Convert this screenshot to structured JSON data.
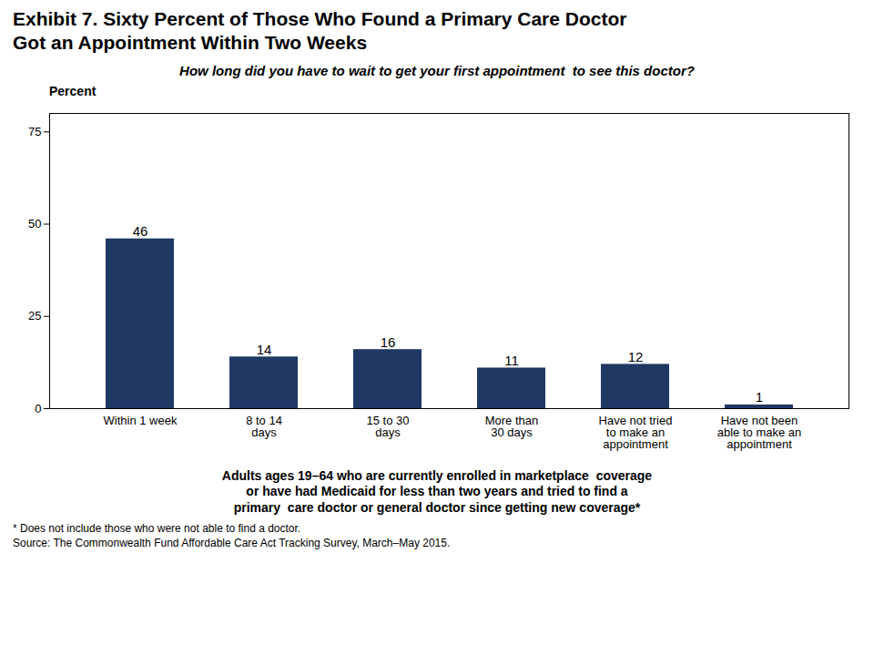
{
  "chart_data": {
    "type": "bar",
    "title": "Exhibit 7. Sixty Percent of Those Who Found a Primary Care Doctor\nGot an Appointment Within Two Weeks",
    "subtitle": "How long did you have to wait to get your first appointment  to see this doctor?",
    "ylabel": "Percent",
    "categories": [
      "Within 1 week",
      "8 to 14\ndays",
      "15 to 30\ndays",
      "More than\n30 days",
      "Have not tried\nto make an\nappointment",
      "Have not been\nable to make an\nappointment"
    ],
    "values": [
      46,
      14,
      16,
      11,
      12,
      1
    ],
    "color": "#1F3864",
    "ylim": [
      0,
      80
    ],
    "yticks": [
      0,
      25,
      50,
      75
    ],
    "grid": false,
    "data_labels": true,
    "caption": "Adults ages 19–64 who are currently enrolled in marketplace  coverage\nor have had Medicaid for less than two years and tried to find a\nprimary  care doctor or general doctor since getting new coverage*",
    "footnotes": [
      "* Does not include those who were not able to find a doctor.",
      "Source: The Commonwealth Fund Affordable Care Act Tracking Survey, March–May 2015."
    ]
  }
}
